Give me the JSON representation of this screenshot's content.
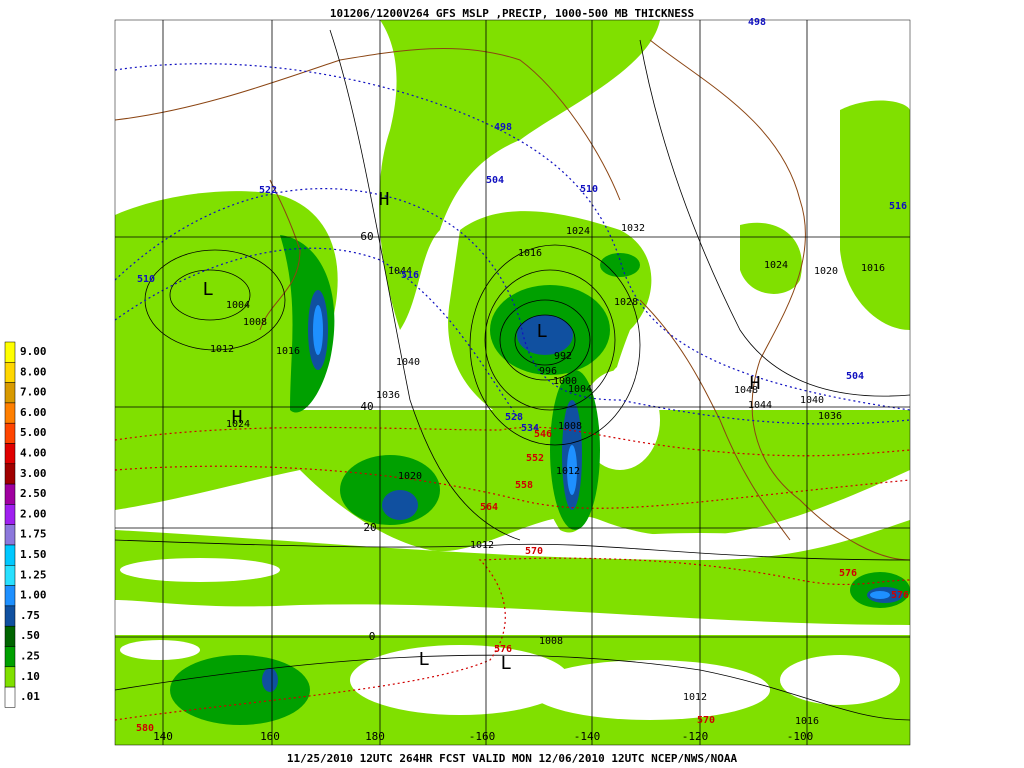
{
  "header": {
    "title": "101206/1200V264 GFS MSLP ,PRECIP, 1000-500 MB THICKNESS"
  },
  "footer": {
    "caption": "11/25/2010 12UTC 264HR FCST VALID MON 12/06/2010 12UTC  NCEP/NWS/NOAA"
  },
  "legend": {
    "labels": [
      "9.00",
      "8.00",
      "7.00",
      "6.00",
      "5.00",
      "4.00",
      "3.00",
      "2.50",
      "2.00",
      "1.75",
      "1.50",
      "1.25",
      "1.00",
      ".75",
      ".50",
      ".25",
      ".10",
      ".01"
    ],
    "colors": [
      "#ffff00",
      "#ffd700",
      "#d89a00",
      "#ff7f00",
      "#ff4500",
      "#e00000",
      "#a00000",
      "#a000a0",
      "#a020f0",
      "#8c78dc",
      "#00c8ff",
      "#28e0ff",
      "#1e90ff",
      "#1050a0",
      "#006400",
      "#00a000",
      "#80e000",
      "#ffffff"
    ]
  },
  "map": {
    "lat_labels": [
      "60",
      "40",
      "20",
      "0"
    ],
    "lon_labels": [
      "140",
      "160",
      "180",
      "-160",
      "-140",
      "-120",
      "-100"
    ],
    "isobar_labels": [
      "1004",
      "1008",
      "1012",
      "1016",
      "1024",
      "1036",
      "1040",
      "1044",
      "1020",
      "1012",
      "1016",
      "1024",
      "1032",
      "1028",
      "1024",
      "1020",
      "1016",
      "992",
      "996",
      "1000",
      "1004",
      "1008",
      "1012",
      "1048",
      "1044",
      "1040",
      "1036",
      "1008",
      "1012",
      "1016"
    ],
    "blue_labels": [
      "510",
      "522",
      "516",
      "504",
      "498",
      "510",
      "528",
      "534",
      "504",
      "516",
      "498"
    ],
    "red_labels": [
      "546",
      "552",
      "558",
      "564",
      "570",
      "576",
      "576",
      "570",
      "576",
      "580"
    ],
    "centers": [
      "L",
      "H",
      "L",
      "H",
      "H",
      "L",
      "L"
    ]
  }
}
